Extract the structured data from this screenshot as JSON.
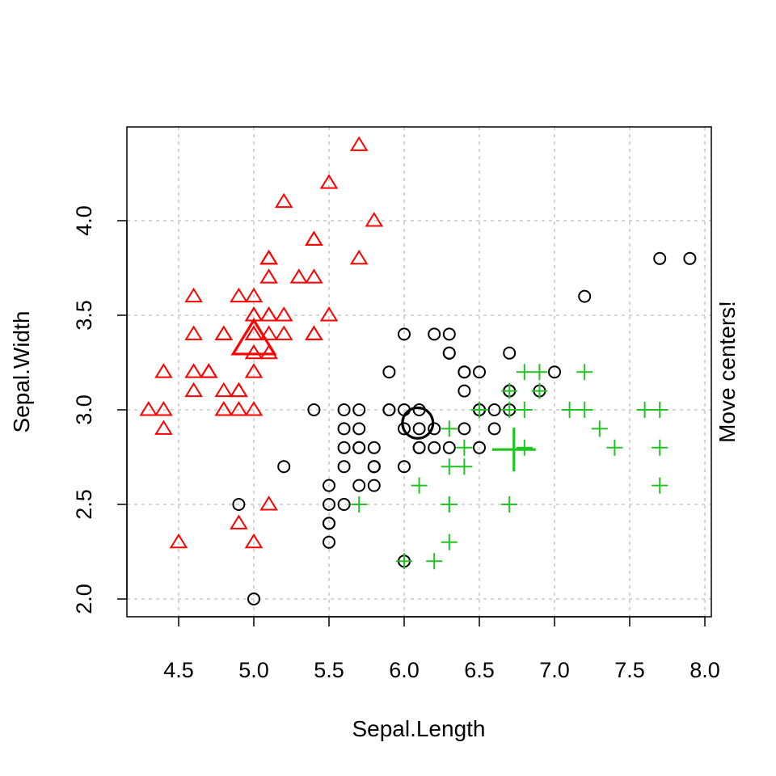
{
  "chart_data": {
    "type": "scatter",
    "title": "",
    "xlabel": "Sepal.Length",
    "ylabel": "Sepal.Width",
    "side_label": "Move centers!",
    "xlim": [
      4.2,
      8.05
    ],
    "ylim": [
      1.9,
      4.5
    ],
    "xticks": [
      "4.5",
      "5.0",
      "5.5",
      "6.0",
      "6.5",
      "7.0",
      "7.5",
      "8.0"
    ],
    "yticks": [
      "2.0",
      "2.5",
      "3.0",
      "3.5",
      "4.0"
    ],
    "grid": true,
    "series": [
      {
        "marker": "triangle",
        "color": "#ff0000",
        "points": [
          [
            5.1,
            3.5
          ],
          [
            4.9,
            3.0
          ],
          [
            4.7,
            3.2
          ],
          [
            4.6,
            3.1
          ],
          [
            5.0,
            3.6
          ],
          [
            5.4,
            3.9
          ],
          [
            4.6,
            3.4
          ],
          [
            5.0,
            3.4
          ],
          [
            4.4,
            2.9
          ],
          [
            4.9,
            3.1
          ],
          [
            5.4,
            3.7
          ],
          [
            4.8,
            3.4
          ],
          [
            4.8,
            3.0
          ],
          [
            4.3,
            3.0
          ],
          [
            5.8,
            4.0
          ],
          [
            5.7,
            4.4
          ],
          [
            5.4,
            3.9
          ],
          [
            5.1,
            3.5
          ],
          [
            5.7,
            3.8
          ],
          [
            5.1,
            3.8
          ],
          [
            5.4,
            3.4
          ],
          [
            5.1,
            3.7
          ],
          [
            4.6,
            3.6
          ],
          [
            5.1,
            3.3
          ],
          [
            4.8,
            3.4
          ],
          [
            5.0,
            3.0
          ],
          [
            5.0,
            3.4
          ],
          [
            5.2,
            3.5
          ],
          [
            5.2,
            3.4
          ],
          [
            4.7,
            3.2
          ],
          [
            4.8,
            3.1
          ],
          [
            5.4,
            3.4
          ],
          [
            5.2,
            4.1
          ],
          [
            5.5,
            4.2
          ],
          [
            4.9,
            3.1
          ],
          [
            5.0,
            3.2
          ],
          [
            5.5,
            3.5
          ],
          [
            4.9,
            3.6
          ],
          [
            4.4,
            3.0
          ],
          [
            5.1,
            3.4
          ],
          [
            5.0,
            3.5
          ],
          [
            4.5,
            2.3
          ],
          [
            4.4,
            3.2
          ],
          [
            5.0,
            3.5
          ],
          [
            5.1,
            3.8
          ],
          [
            4.8,
            3.0
          ],
          [
            5.1,
            3.8
          ],
          [
            4.6,
            3.2
          ],
          [
            5.3,
            3.7
          ],
          [
            5.0,
            3.3
          ],
          [
            4.9,
            2.4
          ],
          [
            5.0,
            2.3
          ],
          [
            5.1,
            2.5
          ]
        ]
      },
      {
        "marker": "circle",
        "color": "#000000",
        "points": [
          [
            4.9,
            2.5
          ],
          [
            5.0,
            2.0
          ],
          [
            5.2,
            2.7
          ],
          [
            5.4,
            3.0
          ],
          [
            5.5,
            2.3
          ],
          [
            5.5,
            2.4
          ],
          [
            5.5,
            2.4
          ],
          [
            5.5,
            2.5
          ],
          [
            5.5,
            2.6
          ],
          [
            5.6,
            2.9
          ],
          [
            5.6,
            3.0
          ],
          [
            5.6,
            2.5
          ],
          [
            5.6,
            2.7
          ],
          [
            5.6,
            2.8
          ],
          [
            5.7,
            2.8
          ],
          [
            5.7,
            2.6
          ],
          [
            5.7,
            3.0
          ],
          [
            5.7,
            2.9
          ],
          [
            5.7,
            2.8
          ],
          [
            5.8,
            2.7
          ],
          [
            5.8,
            2.7
          ],
          [
            5.8,
            2.8
          ],
          [
            5.8,
            2.7
          ],
          [
            5.8,
            2.6
          ],
          [
            5.9,
            3.0
          ],
          [
            5.9,
            3.2
          ],
          [
            5.9,
            3.0
          ],
          [
            6.0,
            2.2
          ],
          [
            6.0,
            2.9
          ],
          [
            6.0,
            3.4
          ],
          [
            6.0,
            2.7
          ],
          [
            6.0,
            3.0
          ],
          [
            6.1,
            2.8
          ],
          [
            6.1,
            2.9
          ],
          [
            6.1,
            3.0
          ],
          [
            6.1,
            2.8
          ],
          [
            6.2,
            2.8
          ],
          [
            6.2,
            3.4
          ],
          [
            6.2,
            2.9
          ],
          [
            6.3,
            3.3
          ],
          [
            6.3,
            2.8
          ],
          [
            6.3,
            3.4
          ],
          [
            6.3,
            3.3
          ],
          [
            6.4,
            3.2
          ],
          [
            6.4,
            2.9
          ],
          [
            6.4,
            3.1
          ],
          [
            6.4,
            3.2
          ],
          [
            6.5,
            3.0
          ],
          [
            6.5,
            3.2
          ],
          [
            6.5,
            2.8
          ],
          [
            6.5,
            3.0
          ],
          [
            6.6,
            3.0
          ],
          [
            6.6,
            2.9
          ],
          [
            6.7,
            3.1
          ],
          [
            6.7,
            3.0
          ],
          [
            6.7,
            3.3
          ],
          [
            6.7,
            3.1
          ],
          [
            6.9,
            3.1
          ],
          [
            7.0,
            3.2
          ],
          [
            7.2,
            3.6
          ],
          [
            7.7,
            3.8
          ],
          [
            7.9,
            3.8
          ]
        ]
      },
      {
        "marker": "plus",
        "color": "#22c322",
        "points": [
          [
            5.7,
            2.5
          ],
          [
            6.0,
            2.2
          ],
          [
            6.1,
            2.6
          ],
          [
            6.2,
            2.2
          ],
          [
            6.3,
            2.3
          ],
          [
            6.3,
            2.5
          ],
          [
            6.3,
            2.7
          ],
          [
            6.3,
            2.9
          ],
          [
            6.3,
            2.5
          ],
          [
            6.4,
            2.7
          ],
          [
            6.4,
            2.8
          ],
          [
            6.5,
            3.0
          ],
          [
            6.7,
            2.5
          ],
          [
            6.7,
            3.0
          ],
          [
            6.7,
            3.1
          ],
          [
            6.8,
            2.8
          ],
          [
            6.8,
            3.0
          ],
          [
            6.8,
            3.2
          ],
          [
            6.9,
            3.2
          ],
          [
            6.9,
            3.1
          ],
          [
            7.1,
            3.0
          ],
          [
            7.2,
            3.0
          ],
          [
            7.2,
            3.2
          ],
          [
            7.3,
            2.9
          ],
          [
            7.4,
            2.8
          ],
          [
            7.6,
            3.0
          ],
          [
            7.7,
            3.0
          ],
          [
            7.7,
            2.8
          ],
          [
            7.7,
            2.6
          ]
        ]
      }
    ],
    "centers": [
      {
        "marker": "triangle",
        "color": "#ff0000",
        "x": 5.0,
        "y": 3.37
      },
      {
        "marker": "circle",
        "color": "#000000",
        "x": 6.09,
        "y": 2.93
      },
      {
        "marker": "plus",
        "color": "#22c322",
        "x": 6.73,
        "y": 2.79
      }
    ]
  }
}
